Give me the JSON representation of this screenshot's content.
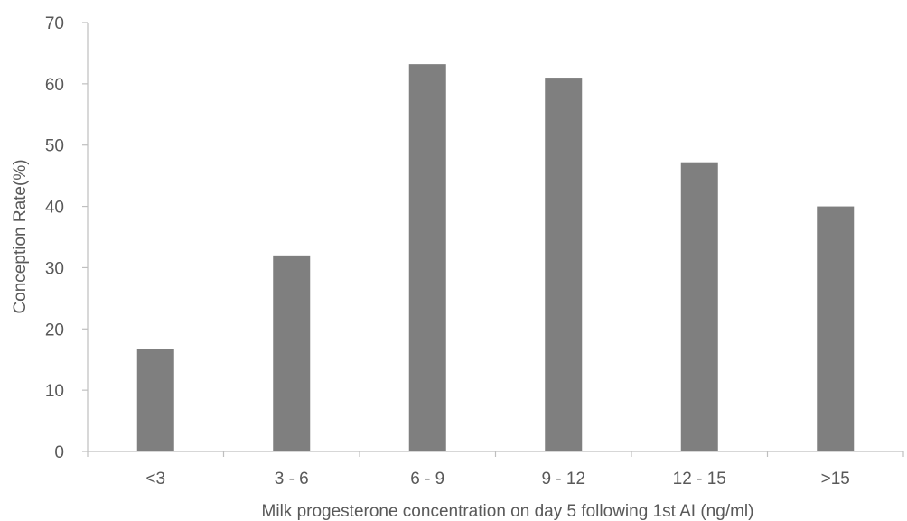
{
  "chart_data": {
    "type": "bar",
    "categories": [
      "<3",
      "3 - 6",
      "6 - 9",
      "9 - 12",
      "12 - 15",
      ">15"
    ],
    "values": [
      16.8,
      32.0,
      63.2,
      61.0,
      47.2,
      40.0
    ],
    "xlabel": "Milk progesterone concentration on day 5 following 1st AI (ng/ml)",
    "ylabel": "Conception Rate(%)",
    "ylim": [
      0,
      70
    ],
    "yticks": [
      0,
      10,
      20,
      30,
      40,
      50,
      60,
      70
    ],
    "grid": false,
    "legend": "none",
    "bar_color": "#7f7f7f",
    "axis_color": "#bfbfbf",
    "text_color": "#595959"
  }
}
